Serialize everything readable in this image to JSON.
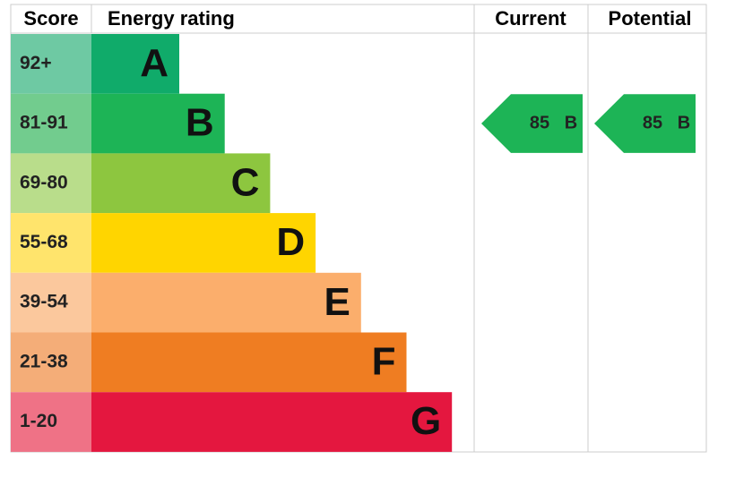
{
  "header": {
    "score": "Score",
    "rating": "Energy rating",
    "current": "Current",
    "potential": "Potential"
  },
  "bands": [
    {
      "score": "92+",
      "letter": "A",
      "color": "#10ab6a",
      "score_color": "#6ec9a3"
    },
    {
      "score": "81-91",
      "letter": "B",
      "color": "#1db456",
      "score_color": "#72cc8e"
    },
    {
      "score": "69-80",
      "letter": "C",
      "color": "#8dc63f",
      "score_color": "#b9dd8b"
    },
    {
      "score": "55-68",
      "letter": "D",
      "color": "#ffd500",
      "score_color": "#ffe46c"
    },
    {
      "score": "39-54",
      "letter": "E",
      "color": "#fbae6c",
      "score_color": "#fbc89d"
    },
    {
      "score": "21-38",
      "letter": "F",
      "color": "#ef7d22",
      "score_color": "#f4ad78"
    },
    {
      "score": "1-20",
      "letter": "G",
      "color": "#e4173f",
      "score_color": "#ef7286"
    }
  ],
  "current": {
    "value": 85,
    "rating": "B"
  },
  "potential": {
    "value": 85,
    "rating": "B"
  }
}
